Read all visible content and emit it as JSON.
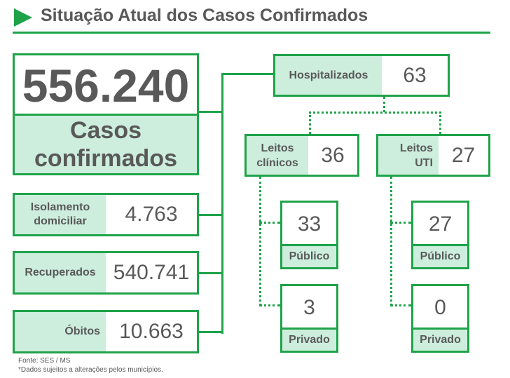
{
  "header": {
    "title": "Situação Atual dos Casos Confirmados"
  },
  "summary": {
    "total_value": "556.240",
    "total_label": "Casos confirmados"
  },
  "categories": [
    {
      "label": "Isolamento domiciliar",
      "value": "4.763"
    },
    {
      "label": "Recuperados",
      "value": "540.741"
    },
    {
      "label": "Óbitos",
      "value": "10.663"
    }
  ],
  "hospital": {
    "label": "Hospitalizados",
    "value": "63",
    "clinical": {
      "label": "Leitos clínicos",
      "value": "36",
      "public": {
        "value": "33",
        "label": "Público"
      },
      "private": {
        "value": "3",
        "label": "Privado"
      }
    },
    "icu": {
      "label": "Leitos UTI",
      "value": "27",
      "public": {
        "value": "27",
        "label": "Público"
      },
      "private": {
        "value": "0",
        "label": "Privado"
      }
    }
  },
  "footer": {
    "source": "Fonte: SES / MS",
    "note": "*Dados sujeitos a alterações pelos municípios."
  },
  "colors": {
    "accent": "#1fa34a",
    "label_fill": "#cdeedd",
    "text": "#595959"
  }
}
